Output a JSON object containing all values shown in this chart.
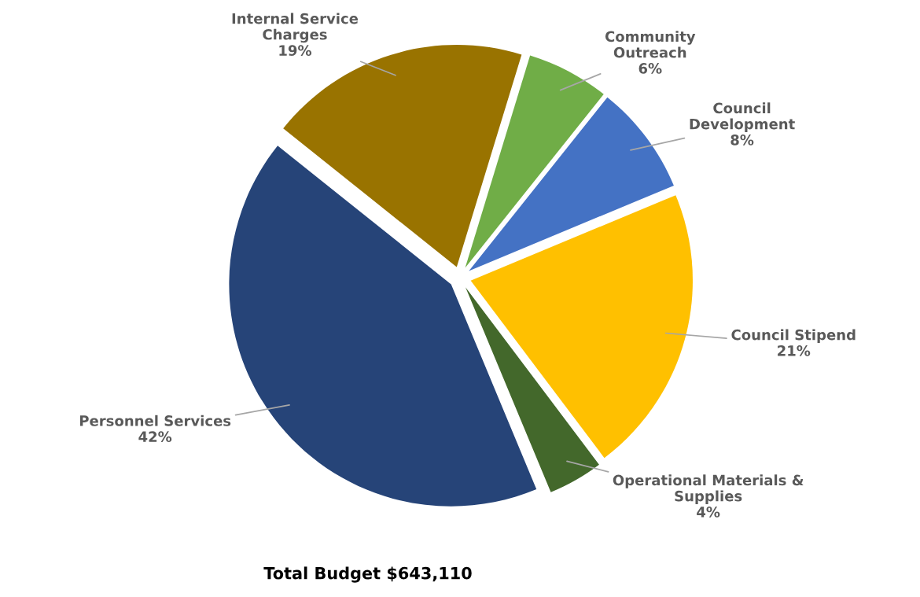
{
  "chart_data": {
    "type": "pie",
    "title": "Total Budget $643,110",
    "categories": [
      "Community\nOutreach",
      "Council\nDevelopment",
      "Council Stipend",
      "Operational Materials &\nSupplies",
      "Personnel Services",
      "Internal Service\nCharges"
    ],
    "values": [
      6,
      8,
      21,
      4,
      42,
      19
    ],
    "value_labels": [
      "6%",
      "8%",
      "21%",
      "4%",
      "42%",
      "19%"
    ],
    "colors": [
      "#70ad47",
      "#4472c4",
      "#ffc000",
      "#43682b",
      "#264478",
      "#997300"
    ],
    "legend": false
  }
}
